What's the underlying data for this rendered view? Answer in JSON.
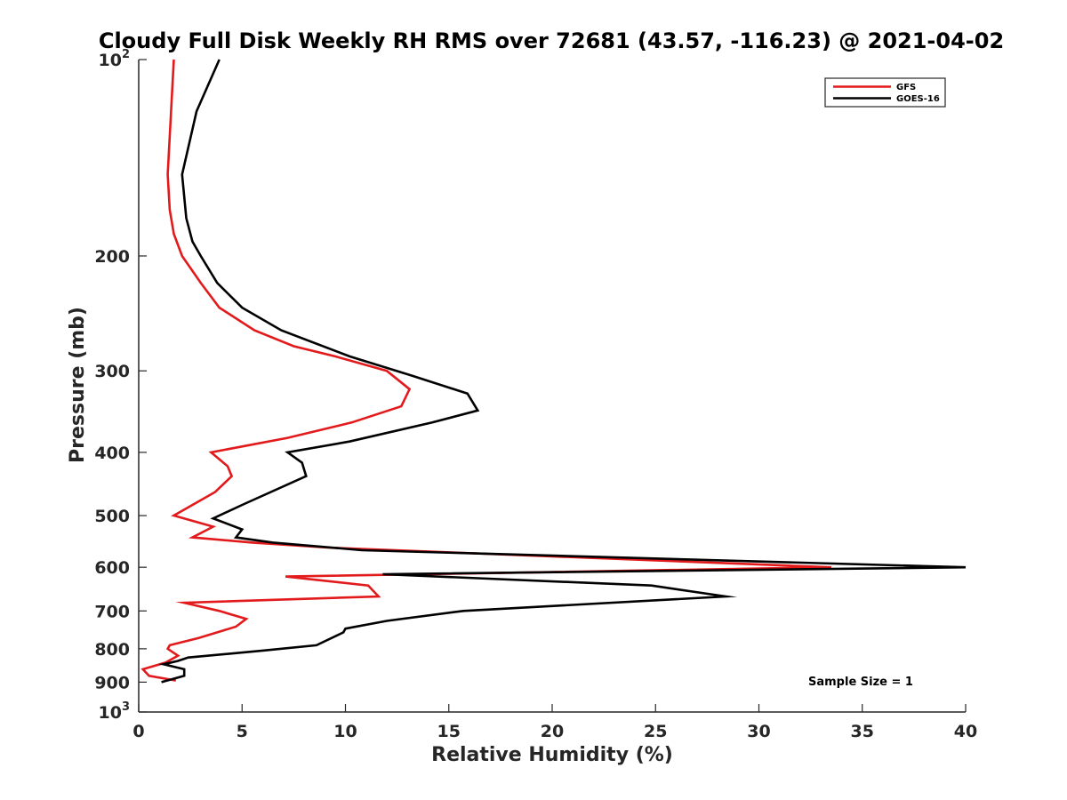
{
  "chart_data": {
    "type": "line",
    "title": "Cloudy Full Disk Weekly RH RMS over 72681 (43.57, -116.23) @ 2021-04-02",
    "xlabel": "Relative Humidity (%)",
    "ylabel": "Pressure (mb)",
    "xlim": [
      0,
      40
    ],
    "ylim": [
      100,
      1000
    ],
    "y_scale": "log",
    "y_reversed": true,
    "grid": false,
    "x_ticks": [
      {
        "value": 0,
        "label": "0"
      },
      {
        "value": 5,
        "label": "5"
      },
      {
        "value": 10,
        "label": "10"
      },
      {
        "value": 15,
        "label": "15"
      },
      {
        "value": 20,
        "label": "20"
      },
      {
        "value": 25,
        "label": "25"
      },
      {
        "value": 30,
        "label": "30"
      },
      {
        "value": 35,
        "label": "35"
      },
      {
        "value": 40,
        "label": "40"
      }
    ],
    "y_ticks": [
      {
        "value": 100,
        "label": "10",
        "sup": "2"
      },
      {
        "value": 200,
        "label": "200",
        "sup": ""
      },
      {
        "value": 300,
        "label": "300",
        "sup": ""
      },
      {
        "value": 400,
        "label": "400",
        "sup": ""
      },
      {
        "value": 500,
        "label": "500",
        "sup": ""
      },
      {
        "value": 600,
        "label": "600",
        "sup": ""
      },
      {
        "value": 700,
        "label": "700",
        "sup": ""
      },
      {
        "value": 800,
        "label": "800",
        "sup": ""
      },
      {
        "value": 900,
        "label": "900",
        "sup": ""
      },
      {
        "value": 1000,
        "label": "10",
        "sup": "3"
      }
    ],
    "legend_position": "top-right",
    "annotation": "Sample Size = 1",
    "series": [
      {
        "name": "GFS",
        "color": "#e31a1c",
        "points": [
          {
            "x": 1.7,
            "y": 100
          },
          {
            "x": 1.4,
            "y": 150
          },
          {
            "x": 1.5,
            "y": 170
          },
          {
            "x": 1.7,
            "y": 185
          },
          {
            "x": 2.1,
            "y": 200
          },
          {
            "x": 3.0,
            "y": 220
          },
          {
            "x": 3.9,
            "y": 240
          },
          {
            "x": 5.6,
            "y": 260
          },
          {
            "x": 7.5,
            "y": 275
          },
          {
            "x": 9.5,
            "y": 285
          },
          {
            "x": 12.0,
            "y": 300
          },
          {
            "x": 13.1,
            "y": 320
          },
          {
            "x": 12.7,
            "y": 340
          },
          {
            "x": 10.3,
            "y": 360
          },
          {
            "x": 7.2,
            "y": 380
          },
          {
            "x": 3.5,
            "y": 400
          },
          {
            "x": 4.3,
            "y": 420
          },
          {
            "x": 4.5,
            "y": 435
          },
          {
            "x": 3.7,
            "y": 460
          },
          {
            "x": 1.7,
            "y": 500
          },
          {
            "x": 3.6,
            "y": 520
          },
          {
            "x": 2.6,
            "y": 540
          },
          {
            "x": 5.5,
            "y": 550
          },
          {
            "x": 9.3,
            "y": 560
          },
          {
            "x": 33.5,
            "y": 600
          },
          {
            "x": 7.1,
            "y": 620
          },
          {
            "x": 11.1,
            "y": 640
          },
          {
            "x": 11.6,
            "y": 665
          },
          {
            "x": 2.2,
            "y": 680
          },
          {
            "x": 3.9,
            "y": 700
          },
          {
            "x": 5.2,
            "y": 720
          },
          {
            "x": 4.7,
            "y": 740
          },
          {
            "x": 2.9,
            "y": 770
          },
          {
            "x": 1.5,
            "y": 790
          },
          {
            "x": 1.4,
            "y": 800
          },
          {
            "x": 1.9,
            "y": 820
          },
          {
            "x": 1.3,
            "y": 840
          },
          {
            "x": 0.2,
            "y": 860
          },
          {
            "x": 0.5,
            "y": 880
          },
          {
            "x": 1.8,
            "y": 895
          }
        ]
      },
      {
        "name": "GOES-16",
        "color": "#000000",
        "points": [
          {
            "x": 3.9,
            "y": 100
          },
          {
            "x": 2.8,
            "y": 120
          },
          {
            "x": 2.1,
            "y": 150
          },
          {
            "x": 2.3,
            "y": 175
          },
          {
            "x": 2.6,
            "y": 190
          },
          {
            "x": 3.0,
            "y": 200
          },
          {
            "x": 3.8,
            "y": 220
          },
          {
            "x": 5.0,
            "y": 240
          },
          {
            "x": 6.9,
            "y": 260
          },
          {
            "x": 10.2,
            "y": 285
          },
          {
            "x": 13.2,
            "y": 305
          },
          {
            "x": 15.9,
            "y": 325
          },
          {
            "x": 16.4,
            "y": 345
          },
          {
            "x": 14.2,
            "y": 360
          },
          {
            "x": 10.2,
            "y": 385
          },
          {
            "x": 7.2,
            "y": 400
          },
          {
            "x": 7.9,
            "y": 415
          },
          {
            "x": 8.1,
            "y": 435
          },
          {
            "x": 5.1,
            "y": 480
          },
          {
            "x": 3.6,
            "y": 505
          },
          {
            "x": 5.0,
            "y": 525
          },
          {
            "x": 4.7,
            "y": 540
          },
          {
            "x": 6.5,
            "y": 550
          },
          {
            "x": 10.8,
            "y": 565
          },
          {
            "x": 40.0,
            "y": 600
          },
          {
            "x": 11.8,
            "y": 615
          },
          {
            "x": 24.8,
            "y": 640
          },
          {
            "x": 28.4,
            "y": 665
          },
          {
            "x": 15.7,
            "y": 700
          },
          {
            "x": 12.0,
            "y": 725
          },
          {
            "x": 10.0,
            "y": 745
          },
          {
            "x": 9.9,
            "y": 755
          },
          {
            "x": 8.6,
            "y": 790
          },
          {
            "x": 6.0,
            "y": 805
          },
          {
            "x": 2.4,
            "y": 825
          },
          {
            "x": 1.9,
            "y": 835
          },
          {
            "x": 1.2,
            "y": 845
          },
          {
            "x": 2.2,
            "y": 860
          },
          {
            "x": 2.2,
            "y": 880
          },
          {
            "x": 1.1,
            "y": 900
          }
        ]
      }
    ]
  }
}
